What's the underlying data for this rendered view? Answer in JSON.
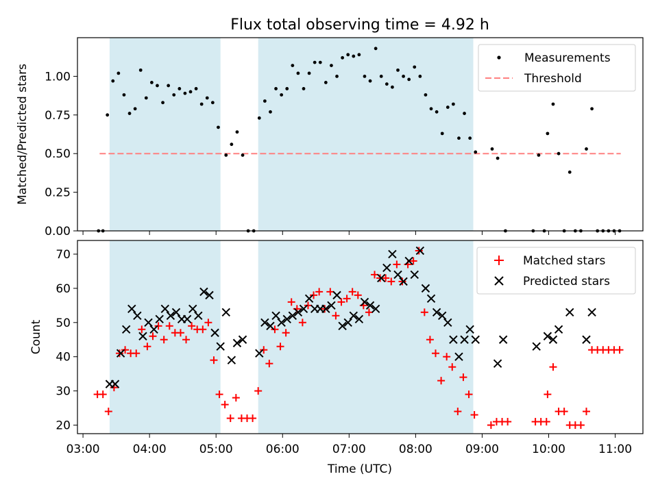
{
  "title": "Flux total observing time = 4.92 h",
  "chart_data": [
    {
      "type": "scatter",
      "panel": "top",
      "ylabel": "Matched/Predicted stars",
      "ylim": [
        0,
        1.25
      ],
      "yticks": [
        "0.00",
        "0.25",
        "0.50",
        "0.75",
        "1.00"
      ],
      "ytick_values": [
        0,
        0.25,
        0.5,
        0.75,
        1.0
      ],
      "shaded_intervals": [
        [
          "03:24",
          "05:04"
        ],
        [
          "05:38",
          "08:52"
        ]
      ],
      "threshold": {
        "name": "Threshold",
        "value": 0.5,
        "x_range": [
          "03:15",
          "11:05"
        ],
        "color": "#ff8080"
      },
      "legend": {
        "placement": "top-right",
        "entries": [
          "Measurements",
          "Threshold"
        ]
      },
      "series": [
        {
          "name": "Measurements",
          "color": "#000000",
          "points": [
            [
              "03:14",
              0
            ],
            [
              "03:18",
              0
            ],
            [
              "03:22",
              0.75
            ],
            [
              "03:27",
              0.97
            ],
            [
              "03:32",
              1.02
            ],
            [
              "03:37",
              0.88
            ],
            [
              "03:42",
              0.76
            ],
            [
              "03:47",
              0.79
            ],
            [
              "03:52",
              1.04
            ],
            [
              "03:57",
              0.86
            ],
            [
              "04:02",
              0.96
            ],
            [
              "04:07",
              0.94
            ],
            [
              "04:12",
              0.83
            ],
            [
              "04:17",
              0.94
            ],
            [
              "04:22",
              0.88
            ],
            [
              "04:27",
              0.92
            ],
            [
              "04:32",
              0.89
            ],
            [
              "04:37",
              0.9
            ],
            [
              "04:42",
              0.92
            ],
            [
              "04:47",
              0.82
            ],
            [
              "04:52",
              0.86
            ],
            [
              "04:57",
              0.83
            ],
            [
              "05:02",
              0.67
            ],
            [
              "05:09",
              0.49
            ],
            [
              "05:14",
              0.56
            ],
            [
              "05:19",
              0.64
            ],
            [
              "05:24",
              0.49
            ],
            [
              "05:29",
              0
            ],
            [
              "05:34",
              0
            ],
            [
              "05:39",
              0.73
            ],
            [
              "05:44",
              0.84
            ],
            [
              "05:49",
              0.77
            ],
            [
              "05:54",
              0.92
            ],
            [
              "05:59",
              0.88
            ],
            [
              "06:04",
              0.92
            ],
            [
              "06:09",
              1.07
            ],
            [
              "06:14",
              1.02
            ],
            [
              "06:19",
              0.92
            ],
            [
              "06:24",
              1.02
            ],
            [
              "06:29",
              1.09
            ],
            [
              "06:34",
              1.09
            ],
            [
              "06:39",
              0.96
            ],
            [
              "06:44",
              1.07
            ],
            [
              "06:49",
              1.0
            ],
            [
              "06:54",
              1.12
            ],
            [
              "06:59",
              1.14
            ],
            [
              "07:04",
              1.13
            ],
            [
              "07:09",
              1.14
            ],
            [
              "07:14",
              1.0
            ],
            [
              "07:19",
              0.97
            ],
            [
              "07:24",
              1.18
            ],
            [
              "07:29",
              1.0
            ],
            [
              "07:34",
              0.95
            ],
            [
              "07:39",
              0.93
            ],
            [
              "07:44",
              1.04
            ],
            [
              "07:49",
              1.0
            ],
            [
              "07:54",
              0.98
            ],
            [
              "07:59",
              1.06
            ],
            [
              "08:04",
              1.0
            ],
            [
              "08:09",
              0.88
            ],
            [
              "08:14",
              0.79
            ],
            [
              "08:19",
              0.77
            ],
            [
              "08:24",
              0.63
            ],
            [
              "08:29",
              0.8
            ],
            [
              "08:34",
              0.82
            ],
            [
              "08:39",
              0.6
            ],
            [
              "08:44",
              0.76
            ],
            [
              "08:49",
              0.6
            ],
            [
              "08:54",
              0.51
            ],
            [
              "09:09",
              0.53
            ],
            [
              "09:14",
              0.47
            ],
            [
              "09:21",
              0
            ],
            [
              "09:46",
              0
            ],
            [
              "09:51",
              0.49
            ],
            [
              "09:56",
              0
            ],
            [
              "09:59",
              0.63
            ],
            [
              "10:04",
              0.82
            ],
            [
              "10:09",
              0.5
            ],
            [
              "10:14",
              0
            ],
            [
              "10:19",
              0.38
            ],
            [
              "10:24",
              0
            ],
            [
              "10:29",
              0
            ],
            [
              "10:34",
              0.53
            ],
            [
              "10:39",
              0.79
            ],
            [
              "10:44",
              0
            ],
            [
              "10:49",
              0
            ],
            [
              "10:54",
              0
            ],
            [
              "10:59",
              0
            ],
            [
              "11:04",
              0
            ]
          ]
        }
      ]
    },
    {
      "type": "scatter",
      "panel": "bottom",
      "xlabel": "Time (UTC)",
      "ylabel": "Count",
      "xlim": [
        "02:55",
        "11:25"
      ],
      "xticks": [
        "03:00",
        "04:00",
        "05:00",
        "06:00",
        "07:00",
        "08:00",
        "09:00",
        "10:00",
        "11:00"
      ],
      "ylim": [
        17.5,
        74
      ],
      "yticks": [
        "20",
        "30",
        "40",
        "50",
        "60",
        "70"
      ],
      "ytick_values": [
        20,
        30,
        40,
        50,
        60,
        70
      ],
      "shaded_intervals": [
        [
          "03:24",
          "05:04"
        ],
        [
          "05:38",
          "08:52"
        ]
      ],
      "legend": {
        "placement": "top-right",
        "entries": [
          "Matched stars",
          "Predicted stars"
        ]
      },
      "series": [
        {
          "name": "Matched stars",
          "marker": "+",
          "color": "#ff0000",
          "points": [
            [
              "03:13",
              29
            ],
            [
              "03:18",
              29
            ],
            [
              "03:23",
              24
            ],
            [
              "03:28",
              31
            ],
            [
              "03:33",
              41
            ],
            [
              "03:38",
              42
            ],
            [
              "03:43",
              41
            ],
            [
              "03:48",
              41
            ],
            [
              "03:53",
              48
            ],
            [
              "03:58",
              43
            ],
            [
              "04:03",
              46
            ],
            [
              "04:08",
              49
            ],
            [
              "04:13",
              45
            ],
            [
              "04:18",
              49
            ],
            [
              "04:23",
              47
            ],
            [
              "04:28",
              47
            ],
            [
              "04:33",
              45
            ],
            [
              "04:38",
              49
            ],
            [
              "04:43",
              48
            ],
            [
              "04:48",
              48
            ],
            [
              "04:53",
              50
            ],
            [
              "04:58",
              39
            ],
            [
              "05:03",
              29
            ],
            [
              "05:08",
              26
            ],
            [
              "05:13",
              22
            ],
            [
              "05:18",
              28
            ],
            [
              "05:23",
              22
            ],
            [
              "05:28",
              22
            ],
            [
              "05:33",
              22
            ],
            [
              "05:38",
              30
            ],
            [
              "05:43",
              42
            ],
            [
              "05:48",
              38
            ],
            [
              "05:53",
              48
            ],
            [
              "05:58",
              43
            ],
            [
              "06:03",
              47
            ],
            [
              "06:08",
              56
            ],
            [
              "06:13",
              54
            ],
            [
              "06:18",
              50
            ],
            [
              "06:23",
              55
            ],
            [
              "06:28",
              58
            ],
            [
              "06:33",
              59
            ],
            [
              "06:38",
              54
            ],
            [
              "06:43",
              59
            ],
            [
              "06:48",
              52
            ],
            [
              "06:53",
              56
            ],
            [
              "06:58",
              57
            ],
            [
              "07:03",
              59
            ],
            [
              "07:08",
              58
            ],
            [
              "07:13",
              55
            ],
            [
              "07:18",
              53
            ],
            [
              "07:23",
              64
            ],
            [
              "07:28",
              63
            ],
            [
              "07:33",
              63
            ],
            [
              "07:38",
              62
            ],
            [
              "07:43",
              67
            ],
            [
              "07:48",
              62
            ],
            [
              "07:53",
              67
            ],
            [
              "07:58",
              68
            ],
            [
              "08:03",
              71
            ],
            [
              "08:08",
              53
            ],
            [
              "08:13",
              45
            ],
            [
              "08:18",
              41
            ],
            [
              "08:23",
              33
            ],
            [
              "08:28",
              40
            ],
            [
              "08:33",
              37
            ],
            [
              "08:38",
              24
            ],
            [
              "08:43",
              34
            ],
            [
              "08:48",
              29
            ],
            [
              "08:53",
              23
            ],
            [
              "09:08",
              20
            ],
            [
              "09:13",
              21
            ],
            [
              "09:18",
              21
            ],
            [
              "09:23",
              21
            ],
            [
              "09:48",
              21
            ],
            [
              "09:53",
              21
            ],
            [
              "09:58",
              21
            ],
            [
              "09:59",
              29
            ],
            [
              "10:04",
              37
            ],
            [
              "10:09",
              24
            ],
            [
              "10:14",
              24
            ],
            [
              "10:19",
              20
            ],
            [
              "10:24",
              20
            ],
            [
              "10:29",
              20
            ],
            [
              "10:34",
              24
            ],
            [
              "10:39",
              42
            ],
            [
              "10:44",
              42
            ],
            [
              "10:49",
              42
            ],
            [
              "10:54",
              42
            ],
            [
              "10:59",
              42
            ],
            [
              "11:04",
              42
            ]
          ]
        },
        {
          "name": "Predicted stars",
          "marker": "x",
          "color": "#000000",
          "points": [
            [
              "03:24",
              32
            ],
            [
              "03:29",
              32
            ],
            [
              "03:34",
              41
            ],
            [
              "03:39",
              48
            ],
            [
              "03:44",
              54
            ],
            [
              "03:49",
              52
            ],
            [
              "03:54",
              46
            ],
            [
              "03:59",
              50
            ],
            [
              "04:04",
              48
            ],
            [
              "04:09",
              51
            ],
            [
              "04:14",
              54
            ],
            [
              "04:19",
              52
            ],
            [
              "04:24",
              53
            ],
            [
              "04:29",
              51
            ],
            [
              "04:34",
              51
            ],
            [
              "04:39",
              54
            ],
            [
              "04:44",
              52
            ],
            [
              "04:49",
              59
            ],
            [
              "04:54",
              58
            ],
            [
              "04:59",
              47
            ],
            [
              "05:04",
              43
            ],
            [
              "05:09",
              53
            ],
            [
              "05:14",
              39
            ],
            [
              "05:19",
              44
            ],
            [
              "05:24",
              45
            ],
            [
              "05:39",
              41
            ],
            [
              "05:44",
              50
            ],
            [
              "05:49",
              49
            ],
            [
              "05:54",
              52
            ],
            [
              "05:59",
              50
            ],
            [
              "06:04",
              51
            ],
            [
              "06:09",
              52
            ],
            [
              "06:14",
              53
            ],
            [
              "06:19",
              54
            ],
            [
              "06:24",
              57
            ],
            [
              "06:29",
              54
            ],
            [
              "06:34",
              54
            ],
            [
              "06:39",
              54
            ],
            [
              "06:44",
              55
            ],
            [
              "06:49",
              58
            ],
            [
              "06:54",
              49
            ],
            [
              "06:59",
              50
            ],
            [
              "07:04",
              52
            ],
            [
              "07:09",
              51
            ],
            [
              "07:14",
              56
            ],
            [
              "07:19",
              55
            ],
            [
              "07:24",
              54
            ],
            [
              "07:29",
              63
            ],
            [
              "07:34",
              66
            ],
            [
              "07:39",
              70
            ],
            [
              "07:44",
              64
            ],
            [
              "07:49",
              62
            ],
            [
              "07:54",
              68
            ],
            [
              "07:59",
              64
            ],
            [
              "08:04",
              71
            ],
            [
              "08:09",
              60
            ],
            [
              "08:14",
              57
            ],
            [
              "08:19",
              53
            ],
            [
              "08:24",
              52
            ],
            [
              "08:29",
              50
            ],
            [
              "08:34",
              45
            ],
            [
              "08:39",
              40
            ],
            [
              "08:44",
              45
            ],
            [
              "08:49",
              48
            ],
            [
              "08:54",
              45
            ],
            [
              "09:14",
              38
            ],
            [
              "09:19",
              45
            ],
            [
              "09:49",
              43
            ],
            [
              "09:59",
              46
            ],
            [
              "10:04",
              45
            ],
            [
              "10:09",
              48
            ],
            [
              "10:19",
              53
            ],
            [
              "10:34",
              45
            ],
            [
              "10:39",
              53
            ]
          ]
        }
      ]
    }
  ]
}
